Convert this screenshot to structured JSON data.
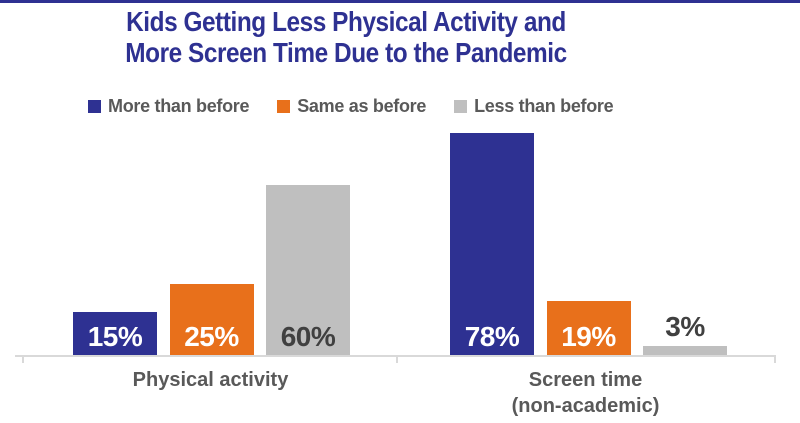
{
  "colors": {
    "accent": "#2E3192",
    "text_gray": "#595959",
    "dark_label": "#404040",
    "axis_line": "#D9D9D9"
  },
  "chart_data": {
    "type": "bar",
    "title": "Kids Getting Less Physical Activity and\nMore Screen Time Due to the Pandemic",
    "title_color": "#2E3192",
    "categories": [
      "Physical activity",
      "Screen time\n(non-academic)"
    ],
    "series": [
      {
        "name": "More than before",
        "color": "#2E3192",
        "label_color": "#FFFFFF",
        "values": [
          15,
          78
        ]
      },
      {
        "name": "Same as before",
        "color": "#E8701B",
        "label_color": "#FFFFFF",
        "values": [
          25,
          19
        ]
      },
      {
        "name": "Less than before",
        "color": "#BFBFBF",
        "label_color": "#404040",
        "values": [
          60,
          3
        ]
      }
    ],
    "value_suffix": "%",
    "value_labels": [
      [
        "15%",
        "78%"
      ],
      [
        "25%",
        "19%"
      ],
      [
        "60%",
        "3%"
      ]
    ],
    "xlabel": "",
    "ylabel": "",
    "ylim": [
      0,
      100
    ],
    "grid": false,
    "legend_position": "top",
    "axis_line_color": "#D9D9D9",
    "category_label_color": "#595959"
  }
}
